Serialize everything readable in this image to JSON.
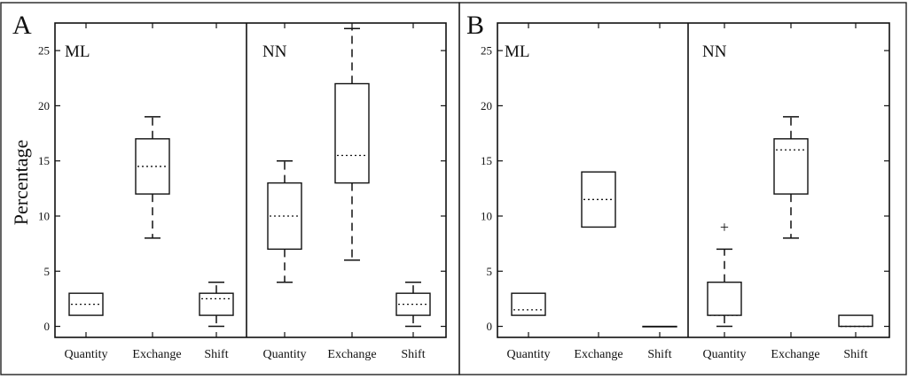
{
  "chart_data": [
    {
      "type": "box",
      "panel_label": "A",
      "ylabel": "Percentage",
      "ylim": [
        -1,
        27.5
      ],
      "yticks": [
        0,
        5,
        10,
        15,
        20,
        25
      ],
      "groups": [
        {
          "name": "ML",
          "categories": [
            "Quantity",
            "Exchange",
            "Shift"
          ],
          "boxes": [
            {
              "q1": 1,
              "median": 2,
              "q3": 3,
              "whisker_low": null,
              "whisker_high": null,
              "outliers": []
            },
            {
              "q1": 12,
              "median": 14.5,
              "q3": 17,
              "whisker_low": 8,
              "whisker_high": 19,
              "outliers": []
            },
            {
              "q1": 1,
              "median": 2.5,
              "q3": 3,
              "whisker_low": 0,
              "whisker_high": 4,
              "outliers": []
            }
          ]
        },
        {
          "name": "NN",
          "categories": [
            "Quantity",
            "Exchange",
            "Shift"
          ],
          "boxes": [
            {
              "q1": 7,
              "median": 10,
              "q3": 13,
              "whisker_low": 4,
              "whisker_high": 15,
              "outliers": []
            },
            {
              "q1": 13,
              "median": 15.5,
              "q3": 22,
              "whisker_low": 6,
              "whisker_high": 27,
              "outliers": []
            },
            {
              "q1": 1,
              "median": 2,
              "q3": 3,
              "whisker_low": 0,
              "whisker_high": 4,
              "outliers": []
            }
          ]
        }
      ]
    },
    {
      "type": "box",
      "panel_label": "B",
      "ylabel": "",
      "ylim": [
        -1,
        27.5
      ],
      "yticks": [
        0,
        5,
        10,
        15,
        20,
        25
      ],
      "groups": [
        {
          "name": "ML",
          "categories": [
            "Quantity",
            "Exchange",
            "Shift"
          ],
          "boxes": [
            {
              "q1": 1,
              "median": 1.5,
              "q3": 3,
              "whisker_low": null,
              "whisker_high": null,
              "outliers": []
            },
            {
              "q1": 9,
              "median": 11.5,
              "q3": 14,
              "whisker_low": null,
              "whisker_high": null,
              "outliers": []
            },
            {
              "q1": 0,
              "median": 0,
              "q3": 0,
              "whisker_low": null,
              "whisker_high": null,
              "outliers": []
            }
          ]
        },
        {
          "name": "NN",
          "categories": [
            "Quantity",
            "Exchange",
            "Shift"
          ],
          "boxes": [
            {
              "q1": 1,
              "median": 1,
              "q3": 4,
              "whisker_low": 0,
              "whisker_high": 7,
              "outliers": [
                9
              ]
            },
            {
              "q1": 12,
              "median": 16,
              "q3": 17,
              "whisker_low": 8,
              "whisker_high": 19,
              "outliers": []
            },
            {
              "q1": 0,
              "median": 0,
              "q3": 1,
              "whisker_low": null,
              "whisker_high": null,
              "outliers": []
            }
          ]
        }
      ]
    }
  ]
}
